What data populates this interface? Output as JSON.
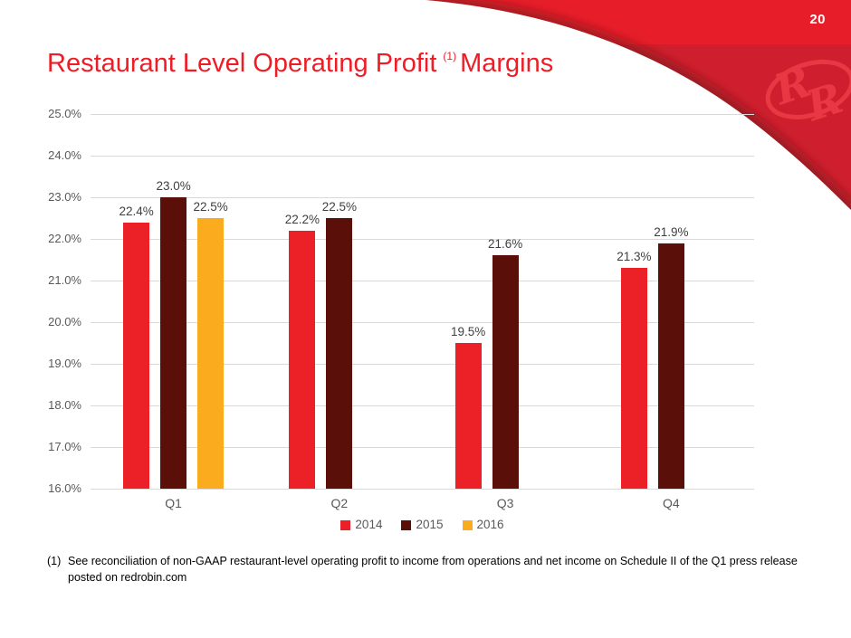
{
  "header": {
    "page_number": "20"
  },
  "title": {
    "main": "Restaurant Level Operating Profit",
    "footnote_ref": "(1)",
    "suffix": "Margins"
  },
  "chart_data": {
    "type": "bar",
    "title": "Restaurant Level Operating Profit (1) Margins",
    "categories": [
      "Q1",
      "Q2",
      "Q3",
      "Q4"
    ],
    "series": [
      {
        "name": "2014",
        "color": "#EC2127",
        "values": [
          22.4,
          22.2,
          19.5,
          21.3
        ]
      },
      {
        "name": "2015",
        "color": "#5A0F08",
        "values": [
          23.0,
          22.5,
          21.6,
          21.9
        ]
      },
      {
        "name": "2016",
        "color": "#FAAB1E",
        "values": [
          22.5,
          null,
          null,
          null
        ]
      }
    ],
    "xlabel": "",
    "ylabel": "",
    "ylim": [
      16.0,
      25.0
    ],
    "ytick_step": 1.0,
    "ytick_format": "percent_one_decimal",
    "data_labels": true,
    "data_label_format": "percent_one_decimal",
    "grid": true,
    "legend_position": "bottom"
  },
  "footnote": {
    "marker": "(1)",
    "lines": [
      "See reconciliation of non-GAAP restaurant-level operating profit to income from operations and net income on Schedule II of the Q1 press release",
      "posted on redrobin.com"
    ]
  },
  "colors": {
    "band_red": "#E71E2A",
    "wedge_red": "#CF1F2E",
    "logo_red": "#E93844",
    "title_red": "#EE1D25",
    "axis_text": "#595959",
    "gridline": "#D9D9D9",
    "data_label": "#3F3F3F",
    "page_number_text": "#FFFFFF"
  }
}
